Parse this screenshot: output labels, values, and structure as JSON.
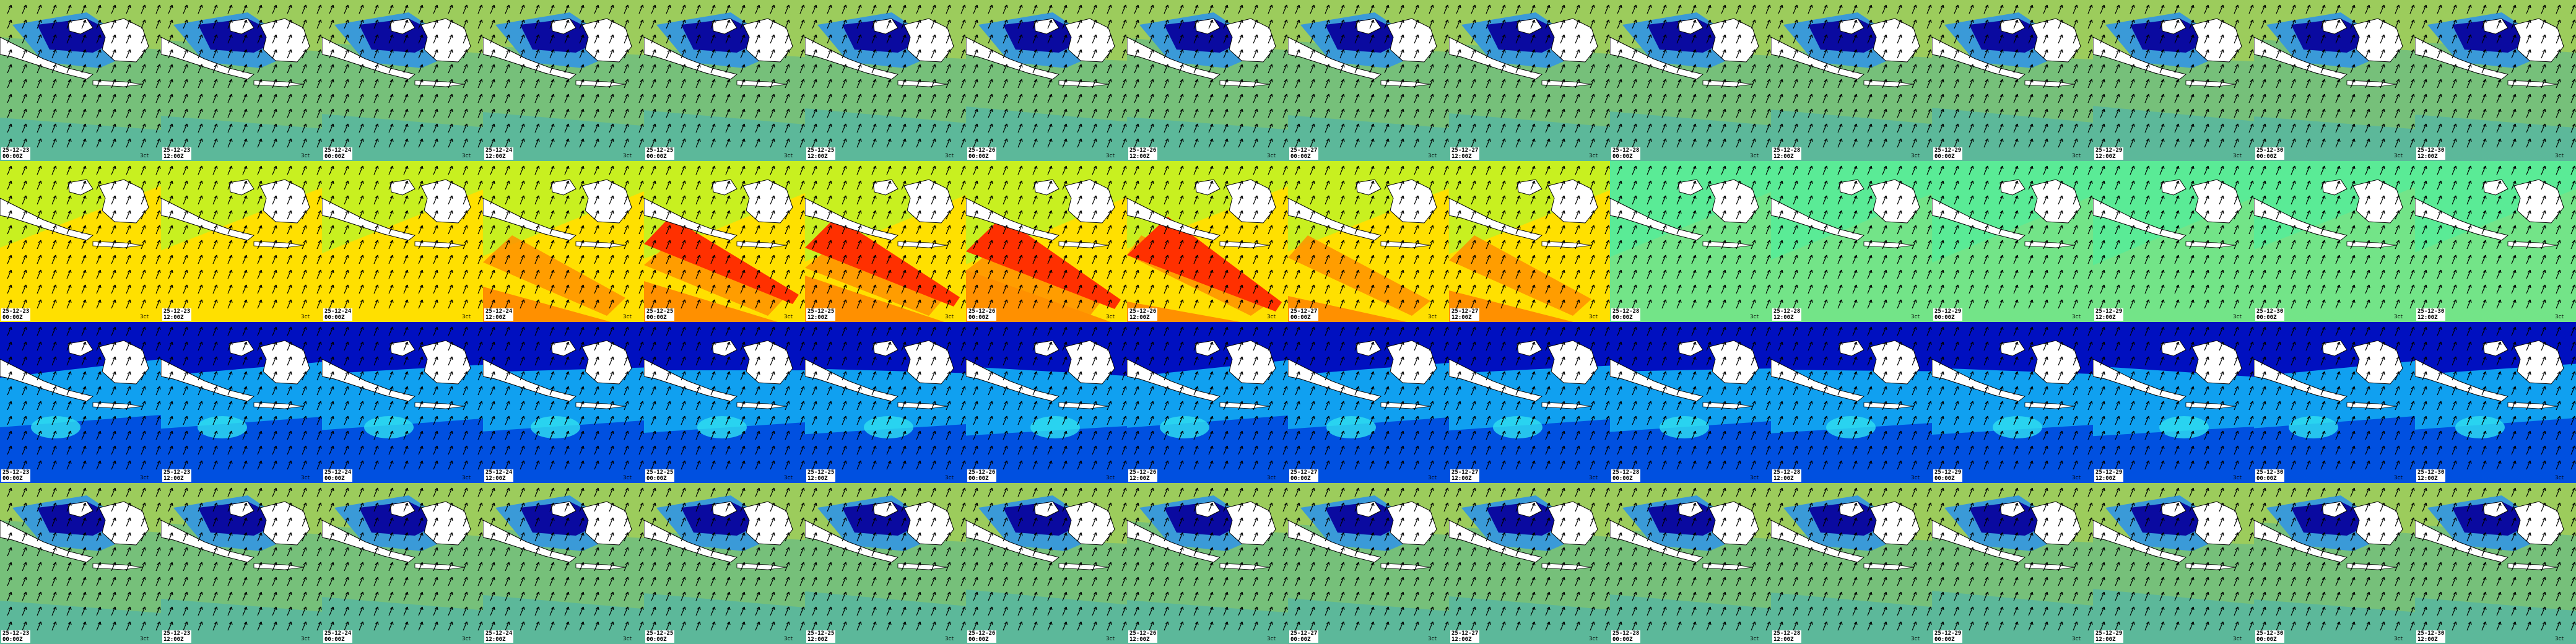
{
  "grid": {
    "rows": 4,
    "cols": 16,
    "columns": [
      {
        "date": "25-12-23",
        "hour": "00:00Z"
      },
      {
        "date": "25-12-23",
        "hour": "12:00Z"
      },
      {
        "date": "25-12-24",
        "hour": "00:00Z"
      },
      {
        "date": "25-12-24",
        "hour": "12:00Z"
      },
      {
        "date": "25-12-25",
        "hour": "00:00Z"
      },
      {
        "date": "25-12-25",
        "hour": "12:00Z"
      },
      {
        "date": "25-12-26",
        "hour": "00:00Z"
      },
      {
        "date": "25-12-26",
        "hour": "12:00Z"
      },
      {
        "date": "25-12-27",
        "hour": "00:00Z"
      },
      {
        "date": "25-12-27",
        "hour": "12:00Z"
      },
      {
        "date": "25-12-28",
        "hour": "00:00Z"
      },
      {
        "date": "25-12-28",
        "hour": "12:00Z"
      },
      {
        "date": "25-12-29",
        "hour": "00:00Z"
      },
      {
        "date": "25-12-29",
        "hour": "12:00Z"
      },
      {
        "date": "25-12-30",
        "hour": "00:00Z"
      },
      {
        "date": "25-12-30",
        "hour": "12:00Z"
      }
    ],
    "scale_label": "3ct",
    "rows_meta": [
      {
        "name": "wave-height-row",
        "palette": "green-blue",
        "colors": [
          "#5cb89a",
          "#76c07a",
          "#9ccc5c",
          "#3a9ad8",
          "#0a0aa0",
          "#ffffff"
        ]
      },
      {
        "name": "wave-period-row",
        "palette": "warm",
        "colors": [
          "#00e8f8",
          "#c8f020",
          "#ffe000",
          "#ff9000",
          "#ff3000",
          "#ffffff"
        ]
      },
      {
        "name": "wind-speed-row",
        "palette": "blue",
        "colors": [
          "#0010c0",
          "#0050e0",
          "#10a0f0",
          "#30e0f0",
          "#70e070",
          "#ffffff"
        ]
      },
      {
        "name": "wave-height-repeat-row",
        "palette": "green-blue",
        "colors": [
          "#5cb89a",
          "#76c07a",
          "#9ccc5c",
          "#3a9ad8",
          "#0a0aa0",
          "#ffffff"
        ]
      }
    ]
  }
}
